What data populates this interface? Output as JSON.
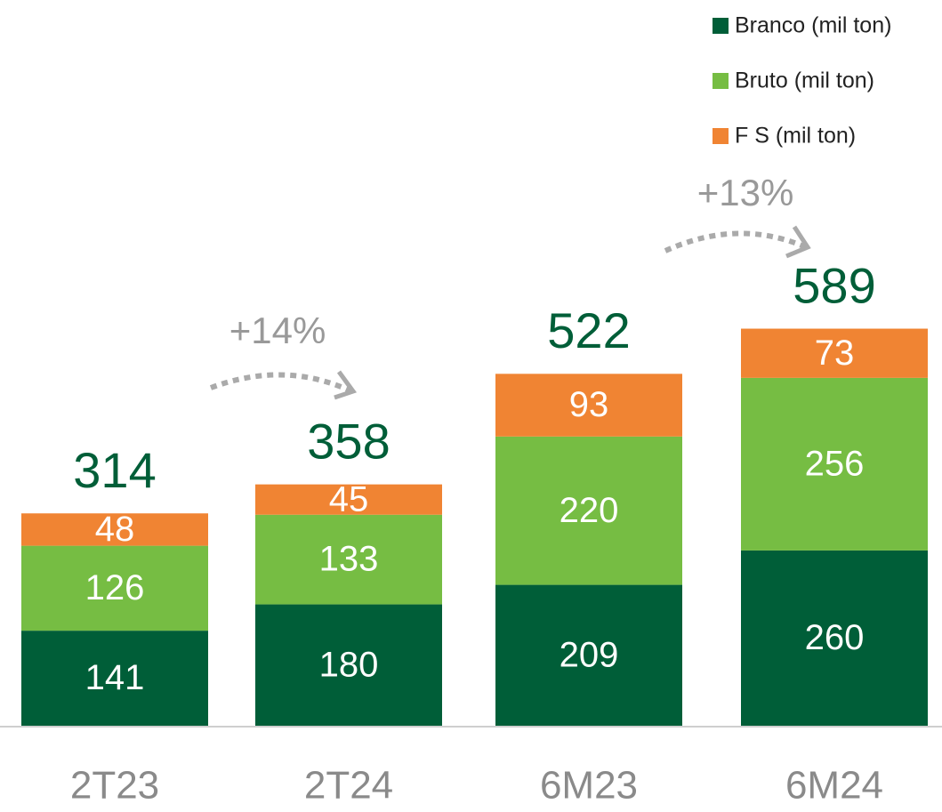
{
  "chart_data": {
    "type": "stacked-bar",
    "categories": [
      "2T23",
      "2T24",
      "6M23",
      "6M24"
    ],
    "series": [
      {
        "name": "Branco (mil ton)",
        "color": "#005e38",
        "values": [
          141,
          180,
          209,
          260
        ]
      },
      {
        "name": "Bruto (mil ton)",
        "color": "#76bd43",
        "values": [
          126,
          133,
          220,
          256
        ]
      },
      {
        "name": "F S (mil ton)",
        "color": "#f08433",
        "values": [
          48,
          45,
          93,
          73
        ]
      }
    ],
    "totals": [
      314,
      358,
      522,
      589
    ],
    "annotations": [
      "+14%",
      "+13%"
    ]
  }
}
